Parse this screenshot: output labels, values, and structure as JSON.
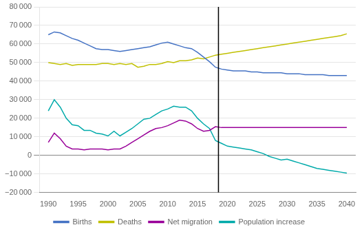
{
  "chart_data": {
    "type": "line",
    "x": [
      1990,
      1991,
      1992,
      1993,
      1994,
      1995,
      1996,
      1997,
      1998,
      1999,
      2000,
      2001,
      2002,
      2003,
      2004,
      2005,
      2006,
      2007,
      2008,
      2009,
      2010,
      2011,
      2012,
      2013,
      2014,
      2015,
      2016,
      2017,
      2018,
      2019,
      2020,
      2021,
      2022,
      2023,
      2024,
      2025,
      2026,
      2027,
      2028,
      2029,
      2030,
      2031,
      2032,
      2033,
      2034,
      2035,
      2036,
      2037,
      2038,
      2039,
      2040
    ],
    "series": [
      {
        "name": "Births",
        "color": "#4472C4",
        "values": [
          65000,
          66500,
          66000,
          64500,
          63000,
          62000,
          60500,
          59000,
          57500,
          57000,
          57000,
          56500,
          56000,
          56500,
          57000,
          57500,
          58000,
          58500,
          59500,
          60500,
          61000,
          60000,
          59000,
          58000,
          57500,
          55500,
          53000,
          50500,
          47500,
          46500,
          46000,
          45500,
          45500,
          45500,
          45000,
          45000,
          44500,
          44500,
          44500,
          44500,
          44000,
          44000,
          44000,
          43500,
          43500,
          43500,
          43500,
          43000,
          43000,
          43000,
          43000
        ]
      },
      {
        "name": "Deaths",
        "color": "#C0C000",
        "values": [
          50000,
          49500,
          49000,
          49500,
          48500,
          49000,
          49000,
          49000,
          49000,
          49500,
          49500,
          49000,
          49500,
          49000,
          49500,
          47500,
          48000,
          49000,
          49000,
          49500,
          50500,
          50000,
          51000,
          51000,
          51500,
          52500,
          52000,
          53000,
          54000,
          54500,
          55000,
          55500,
          56000,
          56500,
          57000,
          57500,
          58000,
          58500,
          59000,
          59500,
          60000,
          60500,
          61000,
          61500,
          62000,
          62500,
          63000,
          63500,
          64000,
          64500,
          65500
        ]
      },
      {
        "name": "Net migration",
        "color": "#990099",
        "values": [
          7000,
          12000,
          9000,
          5000,
          3500,
          3500,
          3000,
          3500,
          3500,
          3500,
          3000,
          3500,
          3500,
          5000,
          7000,
          9000,
          11000,
          13000,
          14500,
          15000,
          16000,
          17500,
          19000,
          18500,
          17000,
          14500,
          13000,
          13500,
          15500,
          15000,
          15000,
          15000,
          15000,
          15000,
          15000,
          15000,
          15000,
          15000,
          15000,
          15000,
          15000,
          15000,
          15000,
          15000,
          15000,
          15000,
          15000,
          15000,
          15000,
          15000,
          15000
        ]
      },
      {
        "name": "Population increase",
        "color": "#00AAAA",
        "values": [
          24000,
          30000,
          26000,
          20000,
          16500,
          16000,
          13500,
          13500,
          12000,
          11500,
          10500,
          13000,
          10500,
          12500,
          14500,
          17000,
          19500,
          20000,
          22000,
          24000,
          25000,
          26500,
          26000,
          26000,
          24000,
          20000,
          17000,
          14500,
          8000,
          6500,
          5000,
          4500,
          4000,
          3500,
          3000,
          2000,
          1000,
          -500,
          -1500,
          -2500,
          -2000,
          -3000,
          -4000,
          -5000,
          -6000,
          -7000,
          -7500,
          -8000,
          -8500,
          -9000,
          -9500
        ]
      }
    ],
    "vline": 2018.5,
    "xlim": [
      1988.5,
      2041.5
    ],
    "xticks": [
      1990,
      1995,
      2000,
      2005,
      2010,
      2015,
      2020,
      2025,
      2030,
      2035,
      2040
    ],
    "ylim": [
      -20000,
      80000
    ],
    "yticks": [
      {
        "value": -20000,
        "label": "−20 000"
      },
      {
        "value": -10000,
        "label": "−10 000"
      },
      0,
      {
        "value": 10000,
        "label": "10 000"
      },
      {
        "value": 20000,
        "label": "20 000"
      },
      {
        "value": 30000,
        "label": "30 000"
      },
      {
        "value": 40000,
        "label": "40 000"
      },
      {
        "value": 50000,
        "label": "50 000"
      },
      {
        "value": 60000,
        "label": "60 000"
      },
      {
        "value": 70000,
        "label": "70 000"
      },
      {
        "value": 80000,
        "label": "80 000"
      }
    ],
    "grid": "y",
    "legend": "bottom"
  }
}
